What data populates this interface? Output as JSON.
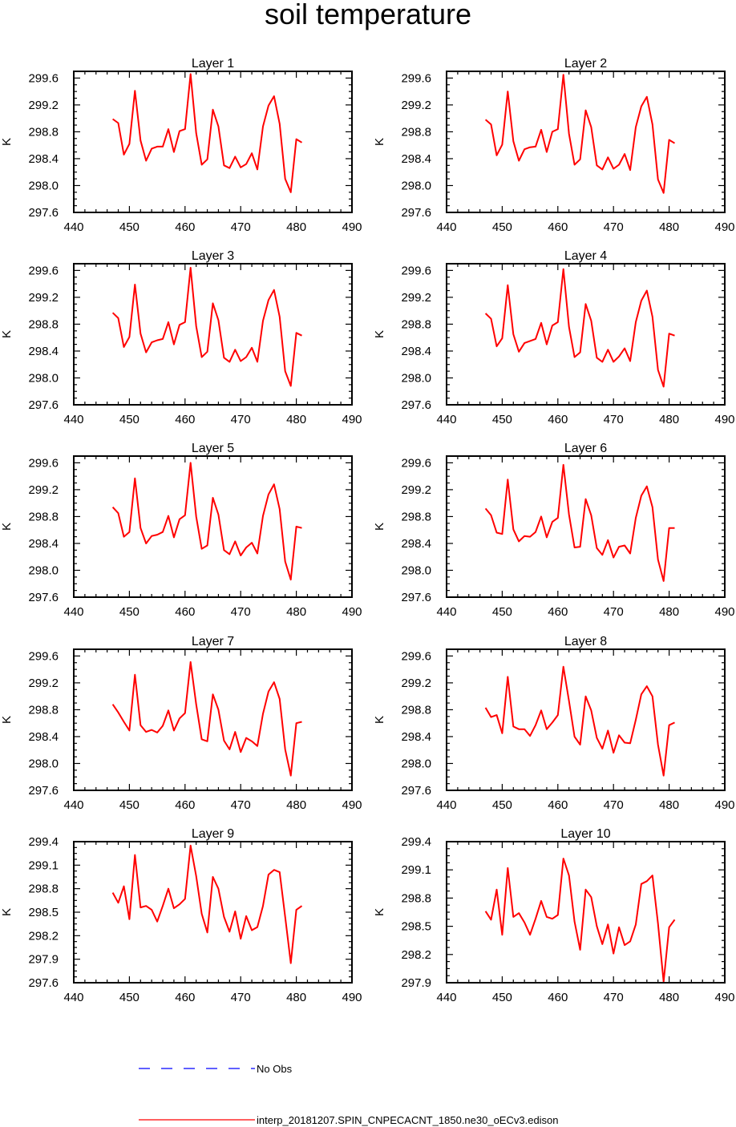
{
  "chart_data": {
    "type": "line",
    "title": "soil temperature",
    "x": [
      447,
      448,
      449,
      450,
      451,
      452,
      453,
      454,
      455,
      456,
      457,
      458,
      459,
      460,
      461,
      462,
      463,
      464,
      465,
      466,
      467,
      468,
      469,
      470,
      471,
      472,
      473,
      474,
      475,
      476,
      477,
      478,
      479,
      480,
      481
    ],
    "xlim": [
      440,
      490
    ],
    "xticks": [
      440,
      450,
      460,
      470,
      480,
      490
    ],
    "legend": {
      "placement": "bottom",
      "entries": [
        {
          "label": "No Obs",
          "color": "#0000ff",
          "style": "dashed"
        },
        {
          "label": "interp_20181207.SPIN_CNPECACNT_1850.ne30_oECv3.edison",
          "color": "#ff0000",
          "style": "solid"
        }
      ]
    },
    "panels": [
      {
        "title": "Layer 1",
        "ylabel": "K",
        "ylim": [
          297.6,
          299.7
        ],
        "yticks": [
          "299.6",
          "299.2",
          "298.8",
          "298.4",
          "298.0",
          "297.6"
        ],
        "series": [
          {
            "name": "interp_20181207.SPIN_CNPECACNT_1850.ne30_oECv3.edison",
            "values": [
              298.99,
              298.93,
              298.46,
              298.62,
              299.41,
              298.67,
              298.37,
              298.55,
              298.58,
              298.58,
              298.84,
              298.5,
              298.81,
              298.84,
              299.66,
              298.78,
              298.31,
              298.39,
              299.13,
              298.88,
              298.3,
              298.26,
              298.43,
              298.27,
              298.32,
              298.48,
              298.24,
              298.88,
              299.19,
              299.33,
              298.92,
              298.1,
              297.9,
              298.69,
              298.64
            ]
          }
        ]
      },
      {
        "title": "Layer 2",
        "ylabel": "K",
        "ylim": [
          297.6,
          299.7
        ],
        "yticks": [
          "299.6",
          "299.2",
          "298.8",
          "298.4",
          "298.0",
          "297.6"
        ],
        "series": [
          {
            "name": "interp_20181207.SPIN_CNPECACNT_1850.ne30_oECv3.edison",
            "values": [
              298.98,
              298.91,
              298.45,
              298.61,
              299.4,
              298.66,
              298.37,
              298.54,
              298.57,
              298.58,
              298.83,
              298.5,
              298.8,
              298.84,
              299.65,
              298.77,
              298.31,
              298.39,
              299.12,
              298.87,
              298.3,
              298.24,
              298.42,
              298.25,
              298.31,
              298.47,
              298.23,
              298.87,
              299.18,
              299.32,
              298.91,
              298.09,
              297.89,
              298.68,
              298.63
            ]
          }
        ]
      },
      {
        "title": "Layer 3",
        "ylabel": "K",
        "ylim": [
          297.6,
          299.7
        ],
        "yticks": [
          "299.6",
          "299.2",
          "298.8",
          "298.4",
          "298.0",
          "297.6"
        ],
        "series": [
          {
            "name": "interp_20181207.SPIN_CNPECACNT_1850.ne30_oECv3.edison",
            "values": [
              298.97,
              298.89,
              298.46,
              298.61,
              299.39,
              298.66,
              298.38,
              298.53,
              298.56,
              298.58,
              298.83,
              298.5,
              298.79,
              298.83,
              299.64,
              298.77,
              298.31,
              298.39,
              299.11,
              298.86,
              298.3,
              298.24,
              298.42,
              298.25,
              298.31,
              298.45,
              298.24,
              298.85,
              299.16,
              299.31,
              298.91,
              298.1,
              297.88,
              298.67,
              298.63
            ]
          }
        ]
      },
      {
        "title": "Layer 4",
        "ylabel": "K",
        "ylim": [
          297.6,
          299.7
        ],
        "yticks": [
          "299.6",
          "299.2",
          "298.8",
          "298.4",
          "298.0",
          "297.6"
        ],
        "series": [
          {
            "name": "interp_20181207.SPIN_CNPECACNT_1850.ne30_oECv3.edison",
            "values": [
              298.96,
              298.88,
              298.47,
              298.59,
              299.38,
              298.65,
              298.39,
              298.52,
              298.55,
              298.58,
              298.82,
              298.5,
              298.78,
              298.83,
              299.62,
              298.76,
              298.31,
              298.38,
              299.1,
              298.85,
              298.3,
              298.24,
              298.42,
              298.24,
              298.32,
              298.44,
              298.25,
              298.83,
              299.15,
              299.3,
              298.91,
              298.12,
              297.87,
              298.66,
              298.63
            ]
          }
        ]
      },
      {
        "title": "Layer 5",
        "ylabel": "K",
        "ylim": [
          297.6,
          299.7
        ],
        "yticks": [
          "299.6",
          "299.2",
          "298.8",
          "298.4",
          "298.0",
          "297.6"
        ],
        "series": [
          {
            "name": "interp_20181207.SPIN_CNPECACNT_1850.ne30_oECv3.edison",
            "values": [
              298.94,
              298.85,
              298.5,
              298.57,
              299.37,
              298.63,
              298.4,
              298.51,
              298.53,
              298.57,
              298.81,
              298.49,
              298.76,
              298.82,
              299.6,
              298.8,
              298.32,
              298.37,
              299.08,
              298.83,
              298.3,
              298.24,
              298.43,
              298.22,
              298.34,
              298.41,
              298.25,
              298.81,
              299.13,
              299.28,
              298.91,
              298.13,
              297.86,
              298.65,
              298.63
            ]
          }
        ]
      },
      {
        "title": "Layer 6",
        "ylabel": "K",
        "ylim": [
          297.6,
          299.7
        ],
        "yticks": [
          "299.6",
          "299.2",
          "298.8",
          "298.4",
          "298.0",
          "297.6"
        ],
        "series": [
          {
            "name": "interp_20181207.SPIN_CNPECACNT_1850.ne30_oECv3.edison",
            "values": [
              298.92,
              298.82,
              298.56,
              298.54,
              299.35,
              298.61,
              298.43,
              298.51,
              298.5,
              298.57,
              298.8,
              298.49,
              298.72,
              298.78,
              299.57,
              298.83,
              298.34,
              298.35,
              299.06,
              298.82,
              298.33,
              298.23,
              298.45,
              298.19,
              298.35,
              298.37,
              298.25,
              298.78,
              299.11,
              299.25,
              298.94,
              298.16,
              297.84,
              298.63,
              298.63
            ]
          }
        ]
      },
      {
        "title": "Layer 7",
        "ylabel": "K",
        "ylim": [
          297.6,
          299.7
        ],
        "yticks": [
          "299.6",
          "299.2",
          "298.8",
          "298.4",
          "298.0",
          "297.6"
        ],
        "series": [
          {
            "name": "interp_20181207.SPIN_CNPECACNT_1850.ne30_oECv3.edison",
            "values": [
              298.88,
              298.76,
              298.62,
              298.49,
              299.32,
              298.57,
              298.47,
              298.5,
              298.46,
              298.56,
              298.79,
              298.49,
              298.67,
              298.75,
              299.51,
              298.88,
              298.36,
              298.33,
              299.03,
              298.8,
              298.34,
              298.21,
              298.47,
              298.17,
              298.38,
              298.33,
              298.26,
              298.74,
              299.07,
              299.21,
              298.96,
              298.21,
              297.82,
              298.6,
              298.62
            ]
          }
        ]
      },
      {
        "title": "Layer 8",
        "ylabel": "K",
        "ylim": [
          297.6,
          299.7
        ],
        "yticks": [
          "299.6",
          "299.2",
          "298.8",
          "298.4",
          "298.0",
          "297.6"
        ],
        "series": [
          {
            "name": "interp_20181207.SPIN_CNPECACNT_1850.ne30_oECv3.edison",
            "values": [
              298.83,
              298.69,
              298.72,
              298.45,
              299.29,
              298.55,
              298.51,
              298.51,
              298.41,
              298.57,
              298.79,
              298.51,
              298.61,
              298.72,
              299.44,
              298.93,
              298.4,
              298.28,
              299.0,
              298.79,
              298.38,
              298.22,
              298.49,
              298.16,
              298.42,
              298.31,
              298.3,
              298.65,
              299.03,
              299.15,
              299.0,
              298.28,
              297.82,
              298.57,
              298.61
            ]
          }
        ]
      },
      {
        "title": "Layer 9",
        "ylabel": "K",
        "ylim": [
          297.6,
          299.4
        ],
        "yticks": [
          "299.4",
          "299.1",
          "298.8",
          "298.5",
          "298.2",
          "297.9",
          "297.6"
        ],
        "series": [
          {
            "name": "interp_20181207.SPIN_CNPECACNT_1850.ne30_oECv3.edison",
            "values": [
              298.75,
              298.62,
              298.83,
              298.41,
              299.23,
              298.56,
              298.58,
              298.53,
              298.38,
              298.58,
              298.8,
              298.55,
              298.6,
              298.67,
              299.35,
              298.96,
              298.48,
              298.24,
              298.95,
              298.8,
              298.44,
              298.25,
              298.51,
              298.16,
              298.45,
              298.27,
              298.31,
              298.58,
              298.98,
              299.04,
              299.01,
              298.44,
              297.85,
              298.53,
              298.58
            ]
          }
        ]
      },
      {
        "title": "Layer 10",
        "ylabel": "K",
        "ylim": [
          297.9,
          299.4
        ],
        "yticks": [
          "299.4",
          "299.1",
          "298.8",
          "298.5",
          "298.2",
          "297.9"
        ],
        "series": [
          {
            "name": "interp_20181207.SPIN_CNPECACNT_1850.ne30_oECv3.edison",
            "values": [
              298.66,
              298.57,
              298.89,
              298.41,
              299.12,
              298.6,
              298.64,
              298.54,
              298.41,
              298.58,
              298.77,
              298.6,
              298.58,
              298.62,
              299.22,
              299.04,
              298.55,
              298.25,
              298.89,
              298.81,
              298.5,
              298.31,
              298.52,
              298.21,
              298.49,
              298.3,
              298.34,
              298.52,
              298.95,
              298.98,
              299.04,
              298.53,
              297.91,
              298.49,
              298.57
            ]
          }
        ]
      }
    ]
  }
}
